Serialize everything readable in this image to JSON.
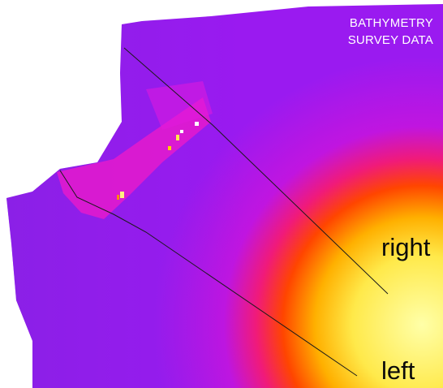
{
  "map": {
    "title_line1": "BATHYMETRY",
    "title_line2": "SURVEY DATA",
    "labels": {
      "right": "right",
      "left": "left"
    },
    "colormap": [
      "#8a2be2",
      "#b21ae8",
      "#e21adc",
      "#ff2a66",
      "#ff6a00",
      "#ffd000",
      "#ffff99"
    ],
    "line_color": "#1a1a1a"
  }
}
